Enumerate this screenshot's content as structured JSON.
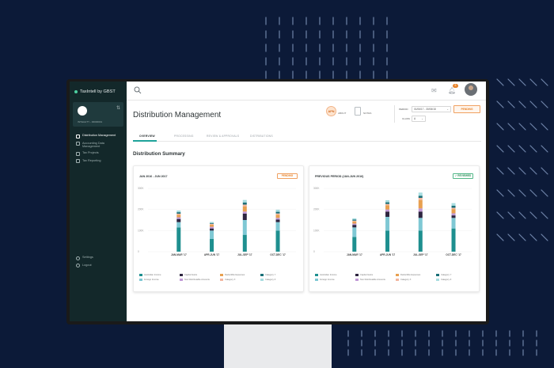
{
  "app": {
    "brand": "TaxIntell by GBST"
  },
  "user_card": {
    "switch_icon": "swap-icon",
    "id_text": "INTEALITY - 00000001"
  },
  "sidebar": {
    "items": [
      {
        "label": "Distribution Management",
        "icon": "network-icon",
        "active": true
      },
      {
        "label": "Accounting Data Management",
        "icon": "document-icon",
        "active": false
      },
      {
        "label": "Tax Projects",
        "icon": "briefcase-icon",
        "active": false
      },
      {
        "label": "Tax Reporting",
        "icon": "folder-icon",
        "active": false
      }
    ],
    "bottom_items": [
      {
        "label": "Settings",
        "icon": "gear-icon"
      },
      {
        "label": "Logout",
        "icon": "logout-icon"
      }
    ]
  },
  "topbar": {
    "notification_count": "5"
  },
  "page": {
    "title": "Distribution Management",
    "section_title": "Distribution Summary"
  },
  "header_actions": {
    "apn_badge": "APN",
    "apn_label": "ABOUT",
    "notes_label": "NOTES",
    "period_label": "PERIOD",
    "period_value": "01/06/17 - 30/06/18",
    "class_label": "CLASS",
    "class_value": "A",
    "status_button": "PENDING"
  },
  "tabs": [
    {
      "label": "OVERVIEW",
      "active": true
    },
    {
      "label": "PROCESSING",
      "active": false
    },
    {
      "label": "REVIEW & APPROVALS",
      "active": false
    },
    {
      "label": "DISTRIBUTIONS",
      "active": false
    }
  ],
  "cards": [
    {
      "title": "JAN 2016 - JUN 2017",
      "badge": "PENDING",
      "badge_type": "pending"
    },
    {
      "title": "PREVIOUS PERIOD (JAN-JUN 2016)",
      "badge": "✓ REVIEWED",
      "badge_type": "reviewed"
    }
  ],
  "colors": {
    "accent": "#1fa39a",
    "pending": "#e8832a",
    "reviewed": "#2d8f5a",
    "sidebar_bg": "#13282a"
  },
  "chart_data": [
    {
      "type": "bar",
      "stacked": true,
      "categories": [
        "JAN-MAR '17",
        "APR-JUN '17",
        "JUL-SEP '17",
        "OCT-DEC '17"
      ],
      "y_ticks": [
        "300K",
        "200K",
        "100K",
        "0"
      ],
      "ylim": [
        0,
        300000
      ],
      "series": [
        {
          "name": "Australian Income",
          "color": "#1e8f8f",
          "values": [
            115000,
            60000,
            80000,
            100000
          ]
        },
        {
          "name": "Foreign Income",
          "color": "#7fc8d4",
          "values": [
            25000,
            40000,
            70000,
            40000
          ]
        },
        {
          "name": "Capital Gains",
          "color": "#2d2540",
          "values": [
            15000,
            10000,
            30000,
            12000
          ]
        },
        {
          "name": "Non Distributable Amounts",
          "color": "#c19ad6",
          "values": [
            8000,
            8000,
            10000,
            8000
          ]
        },
        {
          "name": "Deductible Expenses",
          "color": "#e8a050",
          "values": [
            12000,
            10000,
            25000,
            15000
          ]
        },
        {
          "name": "Category X",
          "color": "#f2b6a0",
          "values": [
            5000,
            4000,
            8000,
            6000
          ]
        },
        {
          "name": "Category Y",
          "color": "#1a6f78",
          "values": [
            7000,
            4000,
            10000,
            8000
          ]
        },
        {
          "name": "Category Z",
          "color": "#a8dde0",
          "values": [
            8000,
            5000,
            12000,
            10000
          ]
        }
      ]
    },
    {
      "type": "bar",
      "stacked": true,
      "categories": [
        "JAN-MAR '17",
        "APR-JUN '17",
        "JUL-SEP '17",
        "OCT-DEC '17"
      ],
      "y_ticks": [
        "300K",
        "200K",
        "100K",
        "0"
      ],
      "ylim": [
        0,
        300000
      ],
      "series": [
        {
          "name": "Australian Income",
          "color": "#1e8f8f",
          "values": [
            70000,
            100000,
            100000,
            110000
          ]
        },
        {
          "name": "Foreign Income",
          "color": "#7fc8d4",
          "values": [
            45000,
            65000,
            60000,
            50000
          ]
        },
        {
          "name": "Capital Gains",
          "color": "#2d2540",
          "values": [
            12000,
            25000,
            30000,
            12000
          ]
        },
        {
          "name": "Non Distributable Amounts",
          "color": "#c19ad6",
          "values": [
            6000,
            10000,
            15000,
            10000
          ]
        },
        {
          "name": "Deductible Expenses",
          "color": "#e8a050",
          "values": [
            10000,
            20000,
            40000,
            20000
          ]
        },
        {
          "name": "Category X",
          "color": "#f2b6a0",
          "values": [
            4000,
            6000,
            10000,
            6000
          ]
        },
        {
          "name": "Category Y",
          "color": "#1a6f78",
          "values": [
            5000,
            8000,
            10000,
            10000
          ]
        },
        {
          "name": "Category Z",
          "color": "#a8dde0",
          "values": [
            6000,
            10000,
            15000,
            12000
          ]
        }
      ]
    }
  ]
}
